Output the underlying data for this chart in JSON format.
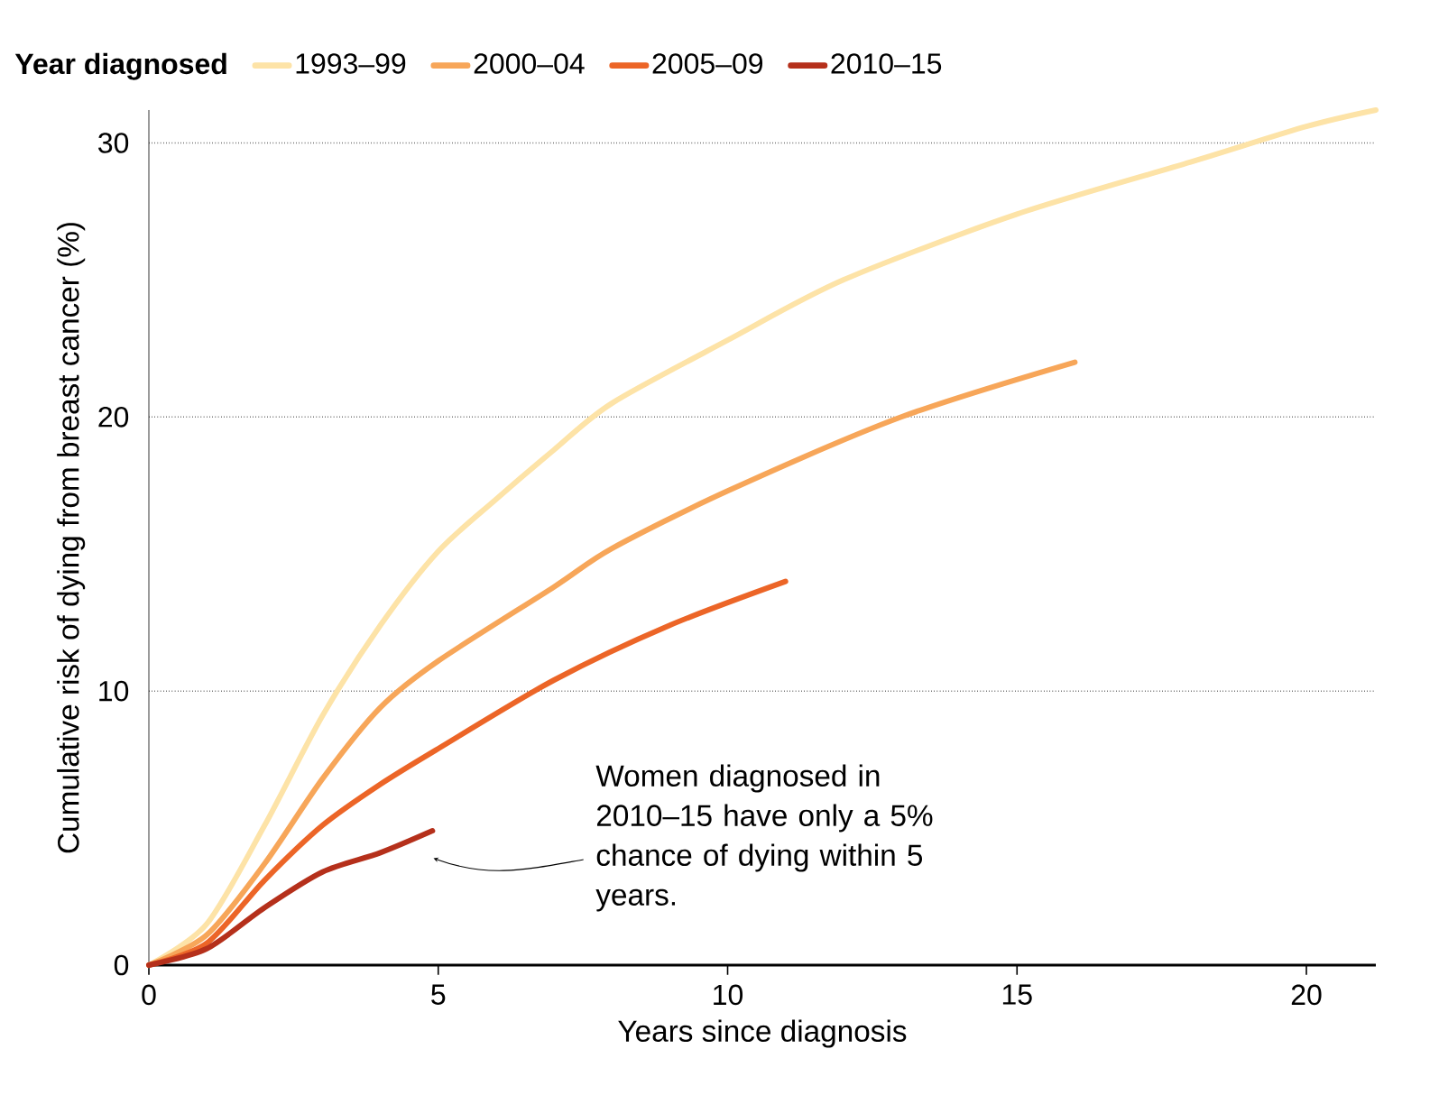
{
  "chart_data": {
    "type": "line",
    "xlabel": "Years since diagnosis",
    "ylabel": "Cumulative risk of dying from breast cancer (%)",
    "legend_title": "Year diagnosed",
    "series": [
      {
        "name": "1993–99",
        "color": "#fde3a7",
        "x": [
          0,
          1,
          2,
          3,
          4,
          5,
          6,
          7,
          8,
          10,
          12,
          15,
          18,
          20,
          21.2
        ],
        "values": [
          0,
          1.5,
          5.1,
          9.1,
          12.4,
          15.1,
          17,
          18.8,
          20.5,
          22.8,
          25,
          27.4,
          29.3,
          30.6,
          31.2
        ]
      },
      {
        "name": "2000–04",
        "color": "#f7a659",
        "x": [
          0,
          1,
          2,
          3,
          4,
          5,
          7,
          8,
          10,
          13,
          16
        ],
        "values": [
          0,
          1.1,
          3.7,
          6.8,
          9.4,
          11.1,
          13.8,
          15.2,
          17.3,
          20,
          22
        ]
      },
      {
        "name": "2005–09",
        "color": "#ec6527",
        "x": [
          0,
          1,
          2,
          3,
          4,
          5,
          7,
          9,
          11
        ],
        "values": [
          0,
          0.8,
          3.1,
          5.1,
          6.6,
          7.9,
          10.4,
          12.4,
          14
        ]
      },
      {
        "name": "2010–15",
        "color": "#b5301b",
        "x": [
          0,
          1,
          2,
          3,
          4,
          4.9
        ],
        "values": [
          0,
          0.6,
          2.1,
          3.4,
          4.1,
          4.9
        ]
      }
    ],
    "xlim": [
      0,
      21.2
    ],
    "ylim": [
      0,
      31.2
    ],
    "xticks": [
      0,
      5,
      10,
      15,
      20
    ],
    "yticks": [
      0,
      10,
      20,
      30
    ],
    "grid": "y",
    "legend": "top left",
    "line_style": "solid",
    "marker": "none",
    "annotations": [
      "Women diagnosed in 2010–15 have only a 5% chance of dying within 5 years."
    ]
  }
}
